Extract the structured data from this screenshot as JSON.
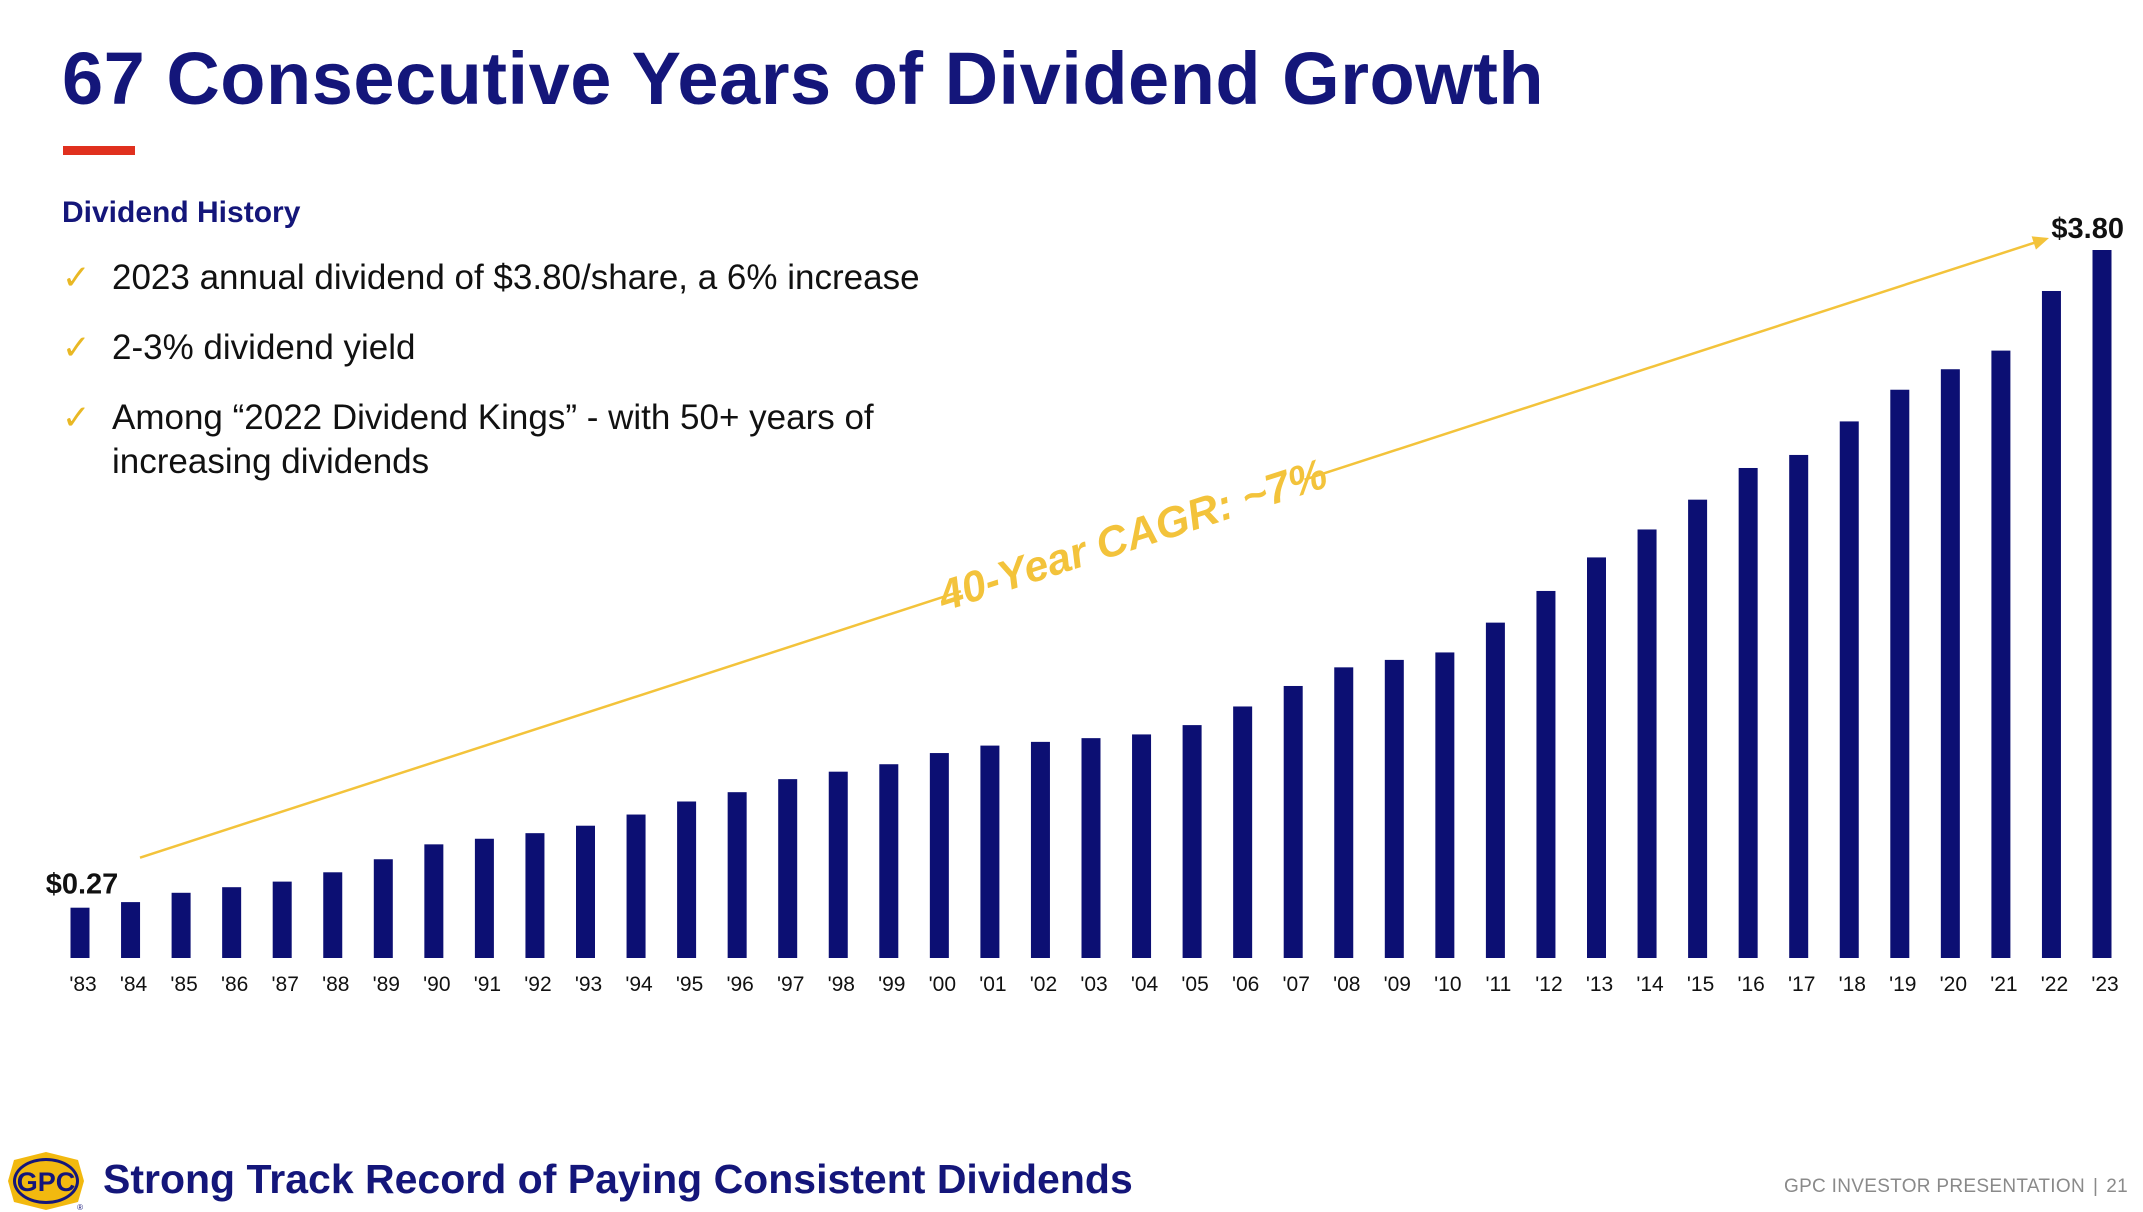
{
  "slide": {
    "title": "67 Consecutive Years of Dividend Growth",
    "section_heading": "Dividend History",
    "bullets": [
      "2023 annual dividend of $3.80/share, a 6% increase",
      "2-3% dividend yield",
      "Among “2022 Dividend Kings” - with 50+ years of increasing dividends"
    ],
    "check_icon": "checkmark-icon",
    "footer_text": "Strong Track Record of Paying Consistent Dividends",
    "presentation_label": "GPC INVESTOR PRESENTATION",
    "separator": "|",
    "page_number": "21",
    "logo_text": "GPC",
    "logo_mark": "®"
  },
  "colors": {
    "title": "#14167a",
    "bars": "#0c0f73",
    "accent_rule": "#e0301e",
    "trend_arrow": "#f3c33b",
    "checkmarks": "#e9b825",
    "logo_fill": "#f2b90f"
  },
  "chart_data": {
    "type": "bar",
    "title": "",
    "xlabel": "",
    "ylabel": "",
    "ylim": [
      0,
      3.8
    ],
    "grid": false,
    "categories": [
      "'83",
      "'84",
      "'85",
      "'86",
      "'87",
      "'88",
      "'89",
      "'90",
      "'91",
      "'92",
      "'93",
      "'94",
      "'95",
      "'96",
      "'97",
      "'98",
      "'99",
      "'00",
      "'01",
      "'02",
      "'03",
      "'04",
      "'05",
      "'06",
      "'07",
      "'08",
      "'09",
      "'10",
      "'11",
      "'12",
      "'13",
      "'14",
      "'15",
      "'16",
      "'17",
      "'18",
      "'19",
      "'20",
      "'21",
      "'22",
      "'23"
    ],
    "values": [
      0.27,
      0.3,
      0.35,
      0.38,
      0.41,
      0.46,
      0.53,
      0.61,
      0.64,
      0.67,
      0.71,
      0.77,
      0.84,
      0.89,
      0.96,
      1.0,
      1.04,
      1.1,
      1.14,
      1.16,
      1.18,
      1.2,
      1.25,
      1.35,
      1.46,
      1.56,
      1.6,
      1.64,
      1.8,
      1.97,
      2.15,
      2.3,
      2.46,
      2.63,
      2.7,
      2.88,
      3.05,
      3.16,
      3.26,
      3.58,
      3.8
    ],
    "data_labels": [
      {
        "category": "'83",
        "text": "$0.27"
      },
      {
        "category": "'23",
        "text": "$3.80"
      }
    ],
    "annotations": [
      {
        "text": "40-Year CAGR: ~7%",
        "kind": "trend-arrow",
        "from": "'83",
        "to": "'23"
      }
    ]
  }
}
